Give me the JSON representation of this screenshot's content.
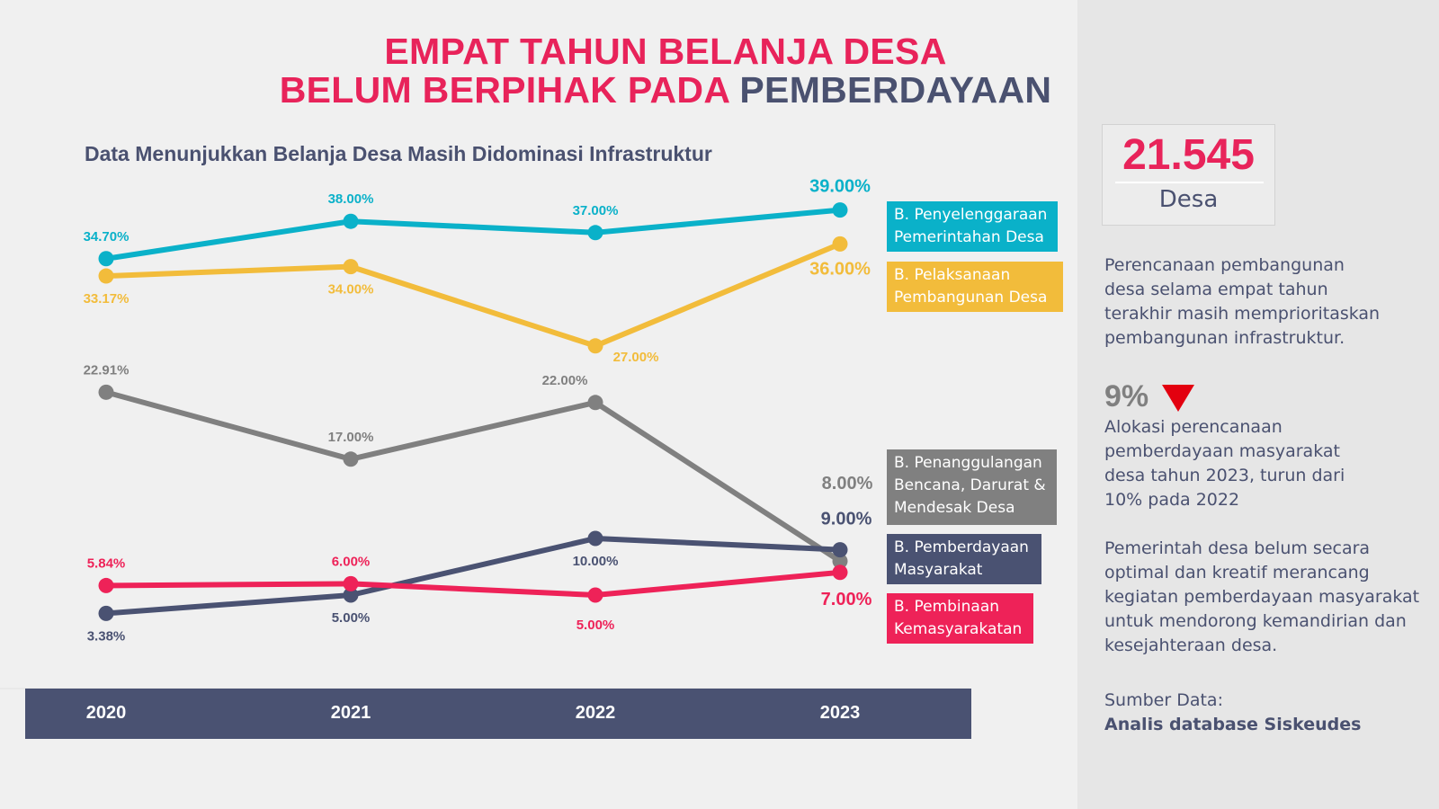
{
  "title": {
    "line1": "EMPAT TAHUN BELANJA DESA",
    "line2_a": "BELUM BERPIHAK PADA ",
    "line2_b": "PEMBERDAYAAN"
  },
  "subtitle": "Data Menunjukkan Belanja Desa Masih Didominasi Infrastruktur",
  "chart_data": {
    "type": "line",
    "categories": [
      "2020",
      "2021",
      "2022",
      "2023"
    ],
    "series": [
      {
        "name": "B. Penyelenggaraan Pemerintahan Desa",
        "legend": "B. Penyelenggaraan\nPemerintahan Desa",
        "color": "#0ab1c9",
        "values": [
          34.7,
          38.0,
          37.0,
          39.0
        ],
        "labels": [
          "34.70%",
          "38.00%",
          "37.00%",
          "39.00%"
        ]
      },
      {
        "name": "B. Pelaksanaan Pembangunan Desa",
        "legend": "B. Pelaksanaan\nPembangunan Desa",
        "color": "#f2bc3b",
        "values": [
          33.17,
          34.0,
          27.0,
          36.0
        ],
        "labels": [
          "33.17%",
          "34.00%",
          "27.00%",
          "36.00%"
        ]
      },
      {
        "name": "B. Penanggulangan Bencana, Darurat & Mendesak Desa",
        "legend": "B. Penanggulangan\nBencana, Darurat &\nMendesak Desa",
        "color": "#808080",
        "values": [
          22.91,
          17.0,
          22.0,
          8.0
        ],
        "labels": [
          "22.91%",
          "17.00%",
          "22.00%",
          "8.00%"
        ]
      },
      {
        "name": "B. Pemberdayaan Masyarakat",
        "legend": "B. Pemberdayaan\nMasyarakat",
        "color": "#4a5272",
        "values": [
          3.38,
          5.0,
          10.0,
          9.0
        ],
        "labels": [
          "3.38%",
          "5.00%",
          "10.00%",
          "9.00%"
        ]
      },
      {
        "name": "B. Pembinaan Kemasyarakatan",
        "legend": "B. Pembinaan\nKemasyarakatan",
        "color": "#ee2258",
        "values": [
          5.84,
          6.0,
          5.0,
          7.0
        ],
        "labels": [
          "5.84%",
          "6.00%",
          "5.00%",
          "7.00%"
        ]
      }
    ],
    "xlabel": "",
    "ylabel": "",
    "grid": false,
    "legend_position": "right"
  },
  "kpi": {
    "value": "21.545",
    "unit": "Desa"
  },
  "sidebar": {
    "plan_text": "Perencanaan pembangunan\ndesa selama empat tahun\nterakhir masih memprioritaskan\npembangunan infrastruktur.",
    "stat_value": "9%",
    "stat_text": "Alokasi perencanaan\npemberdayaan masyarakat\ndesa tahun 2023, turun dari\n10% pada 2022",
    "gov_text": "Pemerintah desa belum secara\noptimal dan kreatif merancang\nkegiatan pemberdayaan masyarakat\nuntuk mendorong kemandirian dan\nkesejahteraan desa.",
    "source_label": "Sumber Data:",
    "source_value": "Analis database Siskeudes"
  },
  "icons": {
    "down": "down-triangle-icon",
    "down_color": "#e3000f"
  }
}
